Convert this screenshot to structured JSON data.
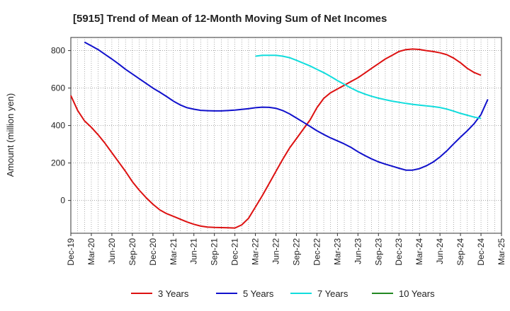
{
  "chart_data": {
    "type": "line",
    "title": "[5915]  Trend of Mean of 12-Month Moving Sum of Net Incomes",
    "xlabel": "",
    "ylabel": "Amount (million yen)",
    "ylim": [
      -175,
      870
    ],
    "yticks": [
      0,
      200,
      400,
      600,
      800
    ],
    "x_tick_labels": [
      "Dec-19",
      "Mar-20",
      "Jun-20",
      "Sep-20",
      "Dec-20",
      "Mar-21",
      "Jun-21",
      "Sep-21",
      "Dec-21",
      "Mar-22",
      "Jun-22",
      "Sep-22",
      "Dec-22",
      "Mar-23",
      "Jun-23",
      "Sep-23",
      "Dec-23",
      "Mar-24",
      "Jun-24",
      "Sep-24",
      "Dec-24",
      "Mar-25"
    ],
    "grid": true,
    "legend_position": "bottom",
    "series": [
      {
        "name": "3 Years",
        "color": "#dd1111",
        "points": [
          [
            "Dec-19",
            560
          ],
          [
            "Jan-20",
            480
          ],
          [
            "Feb-20",
            425
          ],
          [
            "Mar-20",
            390
          ],
          [
            "Apr-20",
            350
          ],
          [
            "May-20",
            305
          ],
          [
            "Jun-20",
            255
          ],
          [
            "Jul-20",
            205
          ],
          [
            "Aug-20",
            155
          ],
          [
            "Sep-20",
            100
          ],
          [
            "Oct-20",
            55
          ],
          [
            "Nov-20",
            15
          ],
          [
            "Dec-20",
            -20
          ],
          [
            "Jan-21",
            -50
          ],
          [
            "Feb-21",
            -70
          ],
          [
            "Mar-21",
            -85
          ],
          [
            "Apr-21",
            -100
          ],
          [
            "May-21",
            -115
          ],
          [
            "Jun-21",
            -127
          ],
          [
            "Jul-21",
            -137
          ],
          [
            "Aug-21",
            -142
          ],
          [
            "Sep-21",
            -144
          ],
          [
            "Oct-21",
            -145
          ],
          [
            "Nov-21",
            -146
          ],
          [
            "Dec-21",
            -147
          ],
          [
            "Jan-22",
            -130
          ],
          [
            "Feb-22",
            -95
          ],
          [
            "Mar-22",
            -35
          ],
          [
            "Apr-22",
            25
          ],
          [
            "May-22",
            90
          ],
          [
            "Jun-22",
            155
          ],
          [
            "Jul-22",
            220
          ],
          [
            "Aug-22",
            280
          ],
          [
            "Sep-22",
            330
          ],
          [
            "Oct-22",
            380
          ],
          [
            "Nov-22",
            430
          ],
          [
            "Dec-22",
            495
          ],
          [
            "Jan-23",
            545
          ],
          [
            "Feb-23",
            575
          ],
          [
            "Mar-23",
            595
          ],
          [
            "Apr-23",
            615
          ],
          [
            "May-23",
            635
          ],
          [
            "Jun-23",
            655
          ],
          [
            "Jul-23",
            680
          ],
          [
            "Aug-23",
            705
          ],
          [
            "Sep-23",
            730
          ],
          [
            "Oct-23",
            755
          ],
          [
            "Nov-23",
            775
          ],
          [
            "Dec-23",
            795
          ],
          [
            "Jan-24",
            805
          ],
          [
            "Feb-24",
            808
          ],
          [
            "Mar-24",
            806
          ],
          [
            "Apr-24",
            800
          ],
          [
            "May-24",
            795
          ],
          [
            "Jun-24",
            788
          ],
          [
            "Jul-24",
            778
          ],
          [
            "Aug-24",
            760
          ],
          [
            "Sep-24",
            735
          ],
          [
            "Oct-24",
            705
          ],
          [
            "Nov-24",
            683
          ],
          [
            "Dec-24",
            668
          ]
        ]
      },
      {
        "name": "5 Years",
        "color": "#1111cc",
        "points": [
          [
            "Feb-20",
            845
          ],
          [
            "Mar-20",
            825
          ],
          [
            "Apr-20",
            805
          ],
          [
            "May-20",
            780
          ],
          [
            "Jun-20",
            755
          ],
          [
            "Jul-20",
            728
          ],
          [
            "Aug-20",
            700
          ],
          [
            "Sep-20",
            675
          ],
          [
            "Oct-20",
            650
          ],
          [
            "Nov-20",
            625
          ],
          [
            "Dec-20",
            600
          ],
          [
            "Jan-21",
            578
          ],
          [
            "Feb-21",
            555
          ],
          [
            "Mar-21",
            530
          ],
          [
            "Apr-21",
            510
          ],
          [
            "May-21",
            495
          ],
          [
            "Jun-21",
            487
          ],
          [
            "Jul-21",
            481
          ],
          [
            "Aug-21",
            479
          ],
          [
            "Sep-21",
            478
          ],
          [
            "Oct-21",
            478
          ],
          [
            "Nov-21",
            480
          ],
          [
            "Dec-21",
            482
          ],
          [
            "Jan-22",
            486
          ],
          [
            "Feb-22",
            490
          ],
          [
            "Mar-22",
            495
          ],
          [
            "Apr-22",
            498
          ],
          [
            "May-22",
            497
          ],
          [
            "Jun-22",
            492
          ],
          [
            "Jul-22",
            480
          ],
          [
            "Aug-22",
            462
          ],
          [
            "Sep-22",
            440
          ],
          [
            "Oct-22",
            418
          ],
          [
            "Nov-22",
            395
          ],
          [
            "Dec-22",
            372
          ],
          [
            "Jan-23",
            352
          ],
          [
            "Feb-23",
            334
          ],
          [
            "Mar-23",
            318
          ],
          [
            "Apr-23",
            302
          ],
          [
            "May-23",
            283
          ],
          [
            "Jun-23",
            260
          ],
          [
            "Jul-23",
            240
          ],
          [
            "Aug-23",
            222
          ],
          [
            "Sep-23",
            206
          ],
          [
            "Oct-23",
            194
          ],
          [
            "Nov-23",
            183
          ],
          [
            "Dec-23",
            172
          ],
          [
            "Jan-24",
            162
          ],
          [
            "Feb-24",
            162
          ],
          [
            "Mar-24",
            170
          ],
          [
            "Apr-24",
            185
          ],
          [
            "May-24",
            205
          ],
          [
            "Jun-24",
            232
          ],
          [
            "Jul-24",
            265
          ],
          [
            "Aug-24",
            302
          ],
          [
            "Sep-24",
            338
          ],
          [
            "Oct-24",
            372
          ],
          [
            "Nov-24",
            410
          ],
          [
            "Dec-24",
            458
          ],
          [
            "Jan-25",
            540
          ]
        ]
      },
      {
        "name": "7 Years",
        "color": "#11dddd",
        "points": [
          [
            "Mar-22",
            770
          ],
          [
            "Apr-22",
            775
          ],
          [
            "May-22",
            775
          ],
          [
            "Jun-22",
            775
          ],
          [
            "Jul-22",
            770
          ],
          [
            "Aug-22",
            762
          ],
          [
            "Sep-22",
            748
          ],
          [
            "Oct-22",
            733
          ],
          [
            "Nov-22",
            718
          ],
          [
            "Dec-22",
            700
          ],
          [
            "Jan-23",
            682
          ],
          [
            "Feb-23",
            662
          ],
          [
            "Mar-23",
            640
          ],
          [
            "Apr-23",
            620
          ],
          [
            "May-23",
            600
          ],
          [
            "Jun-23",
            582
          ],
          [
            "Jul-23",
            568
          ],
          [
            "Aug-23",
            556
          ],
          [
            "Sep-23",
            546
          ],
          [
            "Oct-23",
            538
          ],
          [
            "Nov-23",
            530
          ],
          [
            "Dec-23",
            524
          ],
          [
            "Jan-24",
            518
          ],
          [
            "Feb-24",
            513
          ],
          [
            "Mar-24",
            509
          ],
          [
            "Apr-24",
            505
          ],
          [
            "May-24",
            501
          ],
          [
            "Jun-24",
            496
          ],
          [
            "Jul-24",
            488
          ],
          [
            "Aug-24",
            477
          ],
          [
            "Sep-24",
            465
          ],
          [
            "Oct-24",
            455
          ],
          [
            "Nov-24",
            445
          ],
          [
            "Dec-24",
            438
          ]
        ]
      },
      {
        "name": "10 Years",
        "color": "#228822",
        "points": []
      }
    ]
  }
}
